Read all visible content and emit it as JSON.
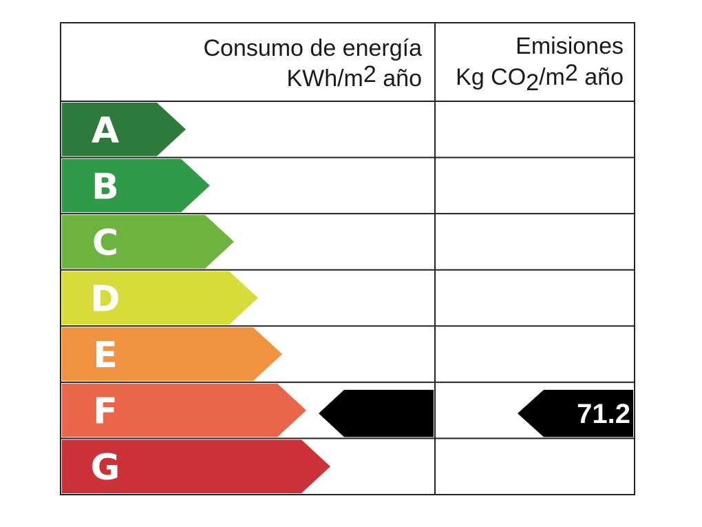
{
  "header": {
    "energy_title": "Consumo de energía",
    "energy_unit": [
      "KWh/m",
      "2",
      " año"
    ],
    "emissions_title": "Emisiones",
    "emissions_unit": [
      "Kg CO",
      "2",
      "/m",
      "2",
      " año"
    ]
  },
  "ratings": [
    {
      "letter": "A",
      "color": "#2e7a3c"
    },
    {
      "letter": "B",
      "color": "#2f9a48"
    },
    {
      "letter": "C",
      "color": "#6cb33f"
    },
    {
      "letter": "D",
      "color": "#d8dc3a"
    },
    {
      "letter": "E",
      "color": "#f0923f"
    },
    {
      "letter": "F",
      "color": "#ea6549"
    },
    {
      "letter": "G",
      "color": "#cc3137"
    }
  ],
  "indicator": {
    "rating": "F",
    "emissions_value": "71.2"
  }
}
